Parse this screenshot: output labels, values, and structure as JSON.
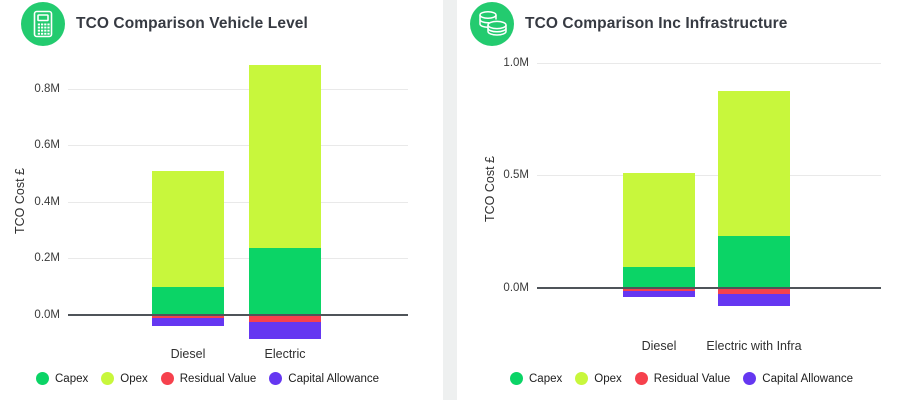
{
  "palette": {
    "capex": "#0bd466",
    "opex": "#c8f73c",
    "residual_value": "#f6414d",
    "capital_allowance": "#6537f1",
    "icon_circle": "#23cb6f",
    "zero_line": "#4f5459",
    "gridline": "#e9e9e9",
    "card_background": "#ffffff",
    "page_background": "#eef0f0"
  },
  "charts": [
    {
      "title": "TCO Comparison Vehicle Level",
      "icon": "calculator-icon",
      "chart_data": {
        "type": "bar",
        "stacked": true,
        "categories": [
          "Diesel",
          "Electric"
        ],
        "series": [
          {
            "name": "Capex",
            "color_key": "capex",
            "values": [
              0.1,
              0.235
            ]
          },
          {
            "name": "Opex",
            "color_key": "opex",
            "values": [
              0.41,
              0.65
            ]
          },
          {
            "name": "Residual Value",
            "color_key": "residual_value",
            "values": [
              -0.01,
              -0.025
            ]
          },
          {
            "name": "Capital Allowance",
            "color_key": "capital_allowance",
            "values": [
              -0.03,
              -0.06
            ]
          }
        ],
        "xlabel": "",
        "ylabel": "TCO Cost £",
        "yticks": [
          0.0,
          0.2,
          0.4,
          0.6,
          0.8
        ],
        "ytick_labels": [
          "0.0M",
          "0.2M",
          "0.4M",
          "0.6M",
          "0.8M"
        ],
        "ylim": [
          -0.1,
          0.91
        ],
        "grid": true,
        "legend_position": "bottom"
      }
    },
    {
      "title": "TCO Comparison Inc Infrastructure",
      "icon": "coins-icon",
      "chart_data": {
        "type": "bar",
        "stacked": true,
        "categories": [
          "Diesel",
          "Electric with Infra"
        ],
        "series": [
          {
            "name": "Capex",
            "color_key": "capex",
            "values": [
              0.095,
              0.23
            ]
          },
          {
            "name": "Opex",
            "color_key": "opex",
            "values": [
              0.415,
              0.645
            ]
          },
          {
            "name": "Residual Value",
            "color_key": "residual_value",
            "values": [
              -0.01,
              -0.025
            ]
          },
          {
            "name": "Capital Allowance",
            "color_key": "capital_allowance",
            "values": [
              -0.03,
              -0.055
            ]
          }
        ],
        "xlabel": "",
        "ylabel": "TCO Cost £",
        "yticks": [
          0.0,
          0.5,
          1.0
        ],
        "ytick_labels": [
          "0.0M",
          "0.5M",
          "1.0M"
        ],
        "ylim": [
          -0.14,
          1.02
        ],
        "grid": true,
        "legend_position": "bottom"
      }
    }
  ]
}
